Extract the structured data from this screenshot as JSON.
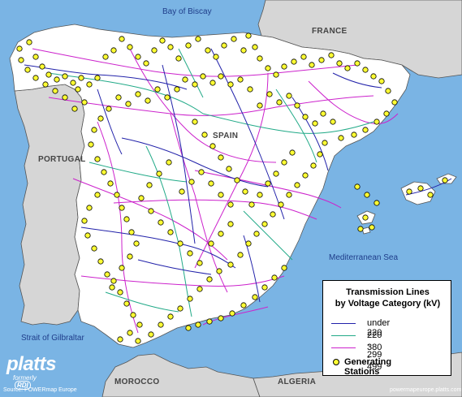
{
  "labels": {
    "bay_of_biscay": "Bay of Biscay",
    "france": "FRANCE",
    "spain": "SPAIN",
    "portugal": "PORTUGAL",
    "mediterranean": "Mediterranean Sea",
    "gibraltar": "Strait of Gilbraltar",
    "morocco": "MOROCCO",
    "algeria": "ALGERIA"
  },
  "legend": {
    "title_line1": "Transmission Lines",
    "title_line2": "by Voltage Category (kV)",
    "items": [
      {
        "label": "under 220",
        "color": "#2222aa"
      },
      {
        "label": "220 - 299",
        "color": "#22aa88"
      },
      {
        "label": "380 - 499",
        "color": "#cc22cc"
      }
    ],
    "stations_label": "Generating Stations",
    "station_color": "#ffff33"
  },
  "brand": {
    "name": "platts",
    "formerly": "formerly",
    "rdi": "RDI"
  },
  "source": "Source:  POWERmap Europe",
  "url": "powermapeurope.platts.com",
  "colors": {
    "sea": "#7ab4e4",
    "land_spain": "#ffffff",
    "land_other": "#d6d6d6",
    "border": "#555555"
  }
}
